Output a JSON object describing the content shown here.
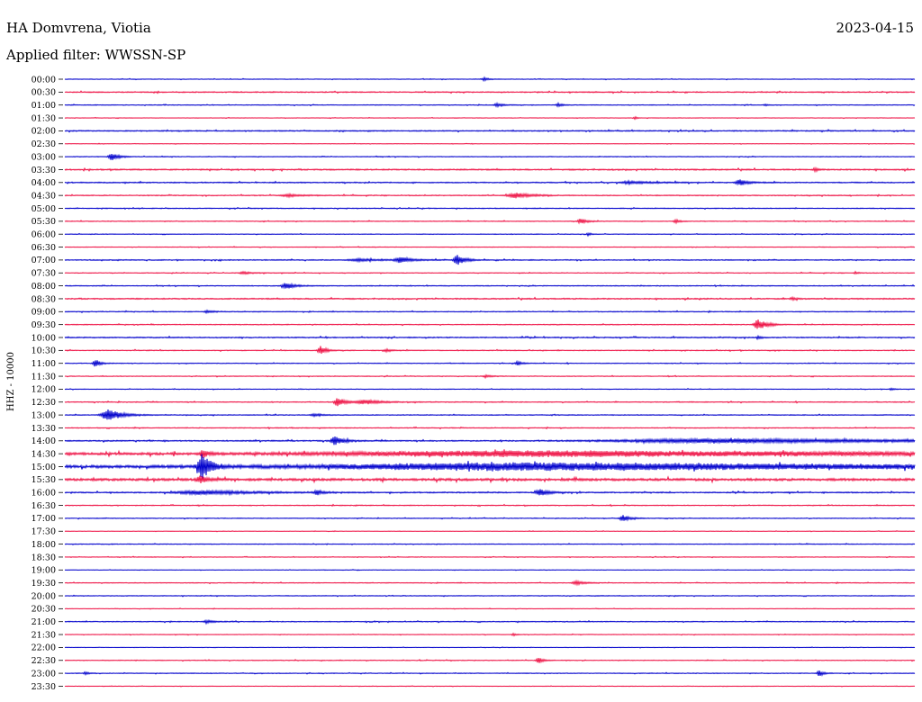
{
  "station_title": "HA Domvrena, Viotia",
  "date": "2023-04-15",
  "filter_label": "Applied filter: WWSSN-SP",
  "chart_data": {
    "type": "line",
    "title": "HA Domvrena, Viotia",
    "subtitle": "Applied filter: WWSSN-SP",
    "xlabel": "",
    "ylabel": "HHZ - 10000",
    "grid": false,
    "legend": "none",
    "trace_colors": [
      "#0000cc",
      "#ee1144"
    ],
    "rows": [
      {
        "time": "00:00",
        "noise": 0.25,
        "events": [
          [
            538,
            0.5,
            4
          ]
        ]
      },
      {
        "time": "00:30",
        "noise": 0.45,
        "events": []
      },
      {
        "time": "01:00",
        "noise": 0.3,
        "events": [
          [
            552,
            0.6,
            6
          ],
          [
            620,
            0.5,
            4
          ],
          [
            850,
            0.3,
            3
          ]
        ]
      },
      {
        "time": "01:30",
        "noise": 0.2,
        "events": [
          [
            705,
            0.6,
            2
          ]
        ]
      },
      {
        "time": "02:00",
        "noise": 0.45,
        "events": []
      },
      {
        "time": "02:30",
        "noise": 0.2,
        "events": []
      },
      {
        "time": "03:00",
        "noise": 0.3,
        "events": [
          [
            124,
            1.3,
            6
          ]
        ]
      },
      {
        "time": "03:30",
        "noise": 0.55,
        "events": [
          [
            905,
            0.6,
            3
          ]
        ]
      },
      {
        "time": "04:00",
        "noise": 0.45,
        "events": [
          [
            822,
            0.9,
            8
          ],
          [
            700,
            0.4,
            20
          ]
        ]
      },
      {
        "time": "04:30",
        "noise": 0.4,
        "events": [
          [
            572,
            0.9,
            14
          ],
          [
            320,
            0.4,
            14
          ]
        ]
      },
      {
        "time": "05:00",
        "noise": 0.35,
        "events": []
      },
      {
        "time": "05:30",
        "noise": 0.3,
        "events": [
          [
            645,
            0.8,
            6
          ],
          [
            750,
            0.6,
            4
          ]
        ]
      },
      {
        "time": "06:00",
        "noise": 0.25,
        "events": [
          [
            653,
            0.5,
            3
          ]
        ]
      },
      {
        "time": "06:30",
        "noise": 0.25,
        "events": []
      },
      {
        "time": "07:00",
        "noise": 0.4,
        "events": [
          [
            508,
            1.6,
            7
          ],
          [
            445,
            0.9,
            10
          ],
          [
            400,
            0.4,
            20
          ]
        ]
      },
      {
        "time": "07:30",
        "noise": 0.3,
        "events": [
          [
            270,
            0.4,
            8
          ],
          [
            950,
            0.4,
            3
          ]
        ]
      },
      {
        "time": "08:00",
        "noise": 0.35,
        "events": [
          [
            318,
            1.0,
            8
          ]
        ]
      },
      {
        "time": "08:30",
        "noise": 0.5,
        "events": [
          [
            880,
            0.4,
            4
          ]
        ]
      },
      {
        "time": "09:00",
        "noise": 0.35,
        "events": [
          [
            230,
            0.4,
            6
          ]
        ]
      },
      {
        "time": "09:30",
        "noise": 0.35,
        "events": [
          [
            842,
            1.6,
            8
          ]
        ]
      },
      {
        "time": "10:00",
        "noise": 0.45,
        "events": [
          [
            842,
            0.5,
            3
          ]
        ]
      },
      {
        "time": "10:30",
        "noise": 0.35,
        "events": [
          [
            356,
            1.5,
            5
          ],
          [
            430,
            0.4,
            6
          ]
        ]
      },
      {
        "time": "11:00",
        "noise": 0.3,
        "events": [
          [
            106,
            1.4,
            4
          ],
          [
            575,
            0.6,
            5
          ]
        ]
      },
      {
        "time": "11:30",
        "noise": 0.3,
        "events": [
          [
            540,
            0.4,
            5
          ]
        ]
      },
      {
        "time": "12:00",
        "noise": 0.25,
        "events": [
          [
            990,
            0.4,
            3
          ]
        ]
      },
      {
        "time": "12:30",
        "noise": 0.35,
        "events": [
          [
            375,
            1.7,
            6
          ],
          [
            405,
            0.7,
            16
          ]
        ]
      },
      {
        "time": "13:00",
        "noise": 0.35,
        "events": [
          [
            120,
            1.8,
            12
          ],
          [
            350,
            0.4,
            8
          ]
        ]
      },
      {
        "time": "13:30",
        "noise": 0.35,
        "events": []
      },
      {
        "time": "14:00",
        "noise": 0.5,
        "events": [
          [
            372,
            1.3,
            8
          ],
          [
            800,
            0.6,
            200
          ]
        ]
      },
      {
        "time": "14:30",
        "noise": 1.0,
        "events": [
          [
            225,
            1.5,
            4
          ],
          [
            600,
            0.8,
            400
          ]
        ]
      },
      {
        "time": "15:00",
        "noise": 1.2,
        "events": [
          [
            224,
            4.0,
            8
          ],
          [
            600,
            1.0,
            400
          ]
        ]
      },
      {
        "time": "15:30",
        "noise": 1.0,
        "events": [
          [
            222,
            1.2,
            6
          ]
        ]
      },
      {
        "time": "16:00",
        "noise": 0.5,
        "events": [
          [
            600,
            1.0,
            8
          ],
          [
            352,
            0.8,
            5
          ],
          [
            225,
            0.6,
            50
          ]
        ]
      },
      {
        "time": "16:30",
        "noise": 0.35,
        "events": []
      },
      {
        "time": "17:00",
        "noise": 0.3,
        "events": [
          [
            692,
            1.0,
            6
          ]
        ]
      },
      {
        "time": "17:30",
        "noise": 0.2,
        "events": []
      },
      {
        "time": "18:00",
        "noise": 0.3,
        "events": []
      },
      {
        "time": "18:30",
        "noise": 0.25,
        "events": []
      },
      {
        "time": "19:00",
        "noise": 0.2,
        "events": []
      },
      {
        "time": "19:30",
        "noise": 0.3,
        "events": [
          [
            640,
            0.6,
            8
          ]
        ]
      },
      {
        "time": "20:00",
        "noise": 0.3,
        "events": []
      },
      {
        "time": "20:30",
        "noise": 0.2,
        "events": []
      },
      {
        "time": "21:00",
        "noise": 0.35,
        "events": [
          [
            230,
            0.5,
            6
          ]
        ]
      },
      {
        "time": "21:30",
        "noise": 0.25,
        "events": [
          [
            570,
            0.4,
            3
          ]
        ]
      },
      {
        "time": "22:00",
        "noise": 0.2,
        "events": []
      },
      {
        "time": "22:30",
        "noise": 0.3,
        "events": [
          [
            598,
            1.0,
            4
          ]
        ]
      },
      {
        "time": "23:00",
        "noise": 0.3,
        "events": [
          [
            910,
            1.0,
            4
          ],
          [
            95,
            0.4,
            4
          ]
        ]
      },
      {
        "time": "23:30",
        "noise": 0.2,
        "events": []
      }
    ]
  }
}
